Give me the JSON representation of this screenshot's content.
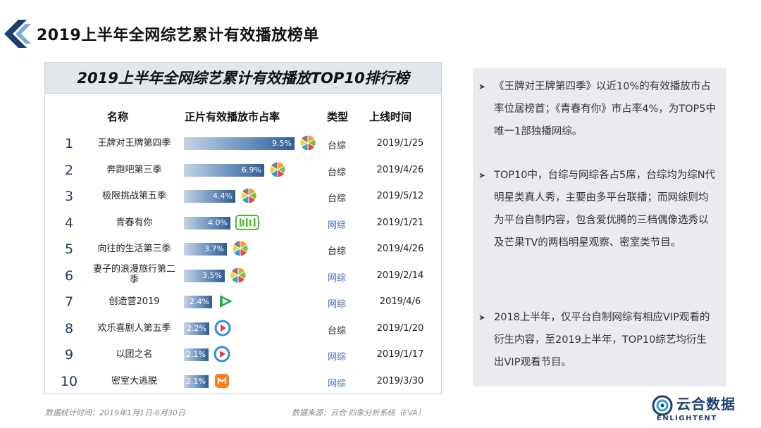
{
  "page": {
    "title": "2019上半年全网综艺累计有效播放榜单",
    "panel_title": "2019上半年全网综艺累计有效播放TOP10排行榜"
  },
  "table": {
    "headers": {
      "name": "名称",
      "share": "正片有效播放市占率",
      "type": "类型",
      "date": "上线时间"
    }
  },
  "chart_data": {
    "type": "bar",
    "title": "2019上半年全网综艺累计有效播放TOP10排行榜",
    "xlabel": "",
    "ylabel": "正片有效播放市占率",
    "categories": [
      "王牌对王牌第四季",
      "奔跑吧第三季",
      "极限挑战第五季",
      "青春有你",
      "向往的生活第三季",
      "妻子的浪漫旅行第二季",
      "创造营2019",
      "欢乐喜剧人第五季",
      "以团之名",
      "密室大逃脱"
    ],
    "values": [
      9.5,
      6.9,
      4.4,
      4.0,
      3.7,
      3.5,
      2.4,
      2.2,
      2.1,
      2.1
    ],
    "unit": "%",
    "ylim": [
      0,
      10
    ],
    "rows": [
      {
        "rank": "1",
        "name": "王牌对王牌第四季",
        "share_label": "9.5%",
        "value": 9.5,
        "platform": "multi-platform-icon",
        "type": "台综",
        "date": "2019/1/25"
      },
      {
        "rank": "2",
        "name": "奔跑吧第三季",
        "share_label": "6.9%",
        "value": 6.9,
        "platform": "multi-platform-icon",
        "type": "台综",
        "date": "2019/4/26"
      },
      {
        "rank": "3",
        "name": "极限挑战第五季",
        "share_label": "4.4%",
        "value": 4.4,
        "platform": "multi-platform-icon",
        "type": "台综",
        "date": "2019/5/12"
      },
      {
        "rank": "4",
        "name": "青春有你",
        "share_label": "4.0%",
        "value": 4.0,
        "platform": "iqiyi-icon",
        "type": "网综",
        "date": "2019/1/21"
      },
      {
        "rank": "5",
        "name": "向往的生活第三季",
        "share_label": "3.7%",
        "value": 3.7,
        "platform": "multi-platform-icon",
        "type": "台综",
        "date": "2019/4/26"
      },
      {
        "rank": "6",
        "name": "妻子的浪漫旅行第二季",
        "share_label": "3.5%",
        "value": 3.5,
        "platform": "multi-platform-icon",
        "type": "网综",
        "date": "2019/2/14"
      },
      {
        "rank": "7",
        "name": "创造营2019",
        "share_label": "2.4%",
        "value": 2.4,
        "platform": "tencent-video-icon",
        "type": "网综",
        "date": "2019/4/6"
      },
      {
        "rank": "8",
        "name": "欢乐喜剧人第五季",
        "share_label": "2.2%",
        "value": 2.2,
        "platform": "youku-icon",
        "type": "台综",
        "date": "2019/1/20"
      },
      {
        "rank": "9",
        "name": "以团之名",
        "share_label": "2.1%",
        "value": 2.1,
        "platform": "youku-icon",
        "type": "网综",
        "date": "2019/1/17"
      },
      {
        "rank": "10",
        "name": "密室大逃脱",
        "share_label": "2.1%",
        "value": 2.1,
        "platform": "mango-tv-icon",
        "type": "网综",
        "date": "2019/3/30"
      }
    ]
  },
  "notes": [
    "《王牌对王牌第四季》以近10%的有效播放市占率位居榜首；《青春有你》市占率4%，为TOP5中唯一1部独播网综。",
    "TOP10中，台综与网综各占5席，台综均为综N代明星类真人秀，主要由多平台联播；而网综则均为平台自制内容，包含爱优腾的三档偶像选秀以及芒果TV的两档明星观察、密室类节目。",
    "2018上半年，仅平台自制网综有相应VIP观看的衍生内容，至2019上半年，TOP10综艺均衍生出VIP观看节目。"
  ],
  "footer": {
    "stat_period": "数据统计时间：2019年1月1日-6月30日",
    "source": "数据来源：云合·四象分析系统（EVA）"
  },
  "brand": {
    "name_cn": "云合数据",
    "name_en": "ENLIGHTENT"
  },
  "colors": {
    "title_bg": "#e3e6ea",
    "notes_bg": "#e9ebee",
    "web_variety": "#3a6cb0",
    "tv_variety": "#222222",
    "accent": "#1f3d6e"
  }
}
